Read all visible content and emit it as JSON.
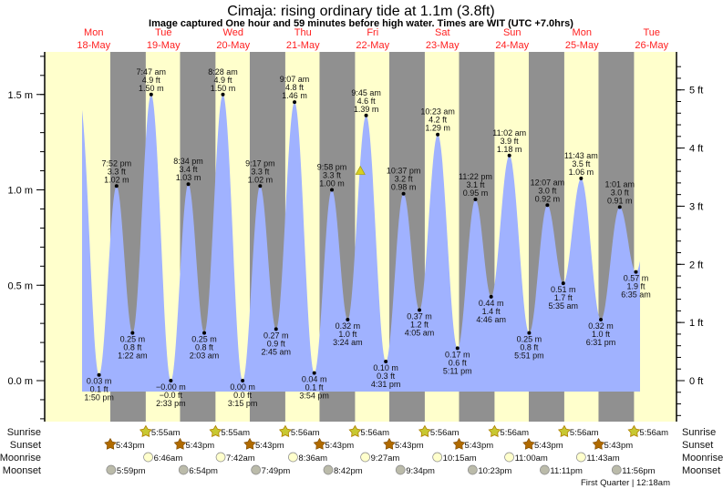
{
  "title": "Cimaja: rising  ordinary tide at 1.1m (3.8ft)",
  "subtitle": "Image captured One hour and 59 minutes before high water. Times are WIT (UTC +7.0hrs)",
  "colors": {
    "day": "#ffffcc",
    "night": "#909090",
    "water": "#a0b2ff",
    "day_label": "#ff2020",
    "sunrise": "#c8c832",
    "sunset": "#b06a00",
    "moonrise": "#ffffcc",
    "moonset": "#bbbbaa",
    "now_marker": "#d8d020"
  },
  "days": [
    {
      "dow": "Mon",
      "date": "18-May"
    },
    {
      "dow": "Tue",
      "date": "19-May"
    },
    {
      "dow": "Wed",
      "date": "20-May"
    },
    {
      "dow": "Thu",
      "date": "21-May"
    },
    {
      "dow": "Fri",
      "date": "22-May"
    },
    {
      "dow": "Sat",
      "date": "23-May"
    },
    {
      "dow": "Sun",
      "date": "24-May"
    },
    {
      "dow": "Mon",
      "date": "25-May"
    },
    {
      "dow": "Tue",
      "date": "26-May"
    }
  ],
  "chart_data": {
    "type": "area",
    "ylim_m": [
      -0.2,
      1.7
    ],
    "left_axis": {
      "unit": "m",
      "ticks": [
        "0.0 m",
        "0.5 m",
        "1.0 m",
        "1.5 m"
      ],
      "values": [
        0,
        0.5,
        1.0,
        1.5
      ]
    },
    "right_axis": {
      "unit": "ft",
      "ticks": [
        "0 ft",
        "1 ft",
        "2 ft",
        "3 ft",
        "4 ft",
        "5 ft"
      ],
      "values": [
        0,
        1,
        2,
        3,
        4,
        5
      ]
    },
    "current": {
      "level_m": 1.1,
      "level_ft": 3.8,
      "day": 4,
      "time": "7:46 am"
    },
    "extremes": [
      {
        "day": 0,
        "time": "1:50 pm",
        "type": "low",
        "m": "0.03 m",
        "ft": "0.1 ft",
        "value": 0.03
      },
      {
        "day": 0,
        "time": "7:52 pm",
        "type": "high",
        "m": "1.02 m",
        "ft": "3.3 ft",
        "value": 1.02
      },
      {
        "day": 1,
        "time": "1:22 am",
        "type": "low",
        "m": "0.25 m",
        "ft": "0.8 ft",
        "value": 0.25
      },
      {
        "day": 1,
        "time": "7:47 am",
        "type": "high",
        "m": "1.50 m",
        "ft": "4.9 ft",
        "value": 1.5
      },
      {
        "day": 1,
        "time": "2:33 pm",
        "type": "low",
        "m": "−0.00 m",
        "ft": "−0.0 ft",
        "value": 0.0
      },
      {
        "day": 1,
        "time": "8:34 pm",
        "type": "high",
        "m": "1.03 m",
        "ft": "3.4 ft",
        "value": 1.03
      },
      {
        "day": 2,
        "time": "2:03 am",
        "type": "low",
        "m": "0.25 m",
        "ft": "0.8 ft",
        "value": 0.25
      },
      {
        "day": 2,
        "time": "8:28 am",
        "type": "high",
        "m": "1.50 m",
        "ft": "4.9 ft",
        "value": 1.5
      },
      {
        "day": 2,
        "time": "3:15 pm",
        "type": "low",
        "m": "0.00 m",
        "ft": "0.0 ft",
        "value": 0.0
      },
      {
        "day": 2,
        "time": "9:17 pm",
        "type": "high",
        "m": "1.02 m",
        "ft": "3.3 ft",
        "value": 1.02
      },
      {
        "day": 3,
        "time": "2:45 am",
        "type": "low",
        "m": "0.27 m",
        "ft": "0.9 ft",
        "value": 0.27
      },
      {
        "day": 3,
        "time": "9:07 am",
        "type": "high",
        "m": "1.46 m",
        "ft": "4.8 ft",
        "value": 1.46
      },
      {
        "day": 3,
        "time": "3:54 pm",
        "type": "low",
        "m": "0.04 m",
        "ft": "0.1 ft",
        "value": 0.04
      },
      {
        "day": 3,
        "time": "9:58 pm",
        "type": "high",
        "m": "1.00 m",
        "ft": "3.3 ft",
        "value": 1.0
      },
      {
        "day": 4,
        "time": "3:24 am",
        "type": "low",
        "m": "0.32 m",
        "ft": "1.0 ft",
        "value": 0.32
      },
      {
        "day": 4,
        "time": "9:45 am",
        "type": "high",
        "m": "1.39 m",
        "ft": "4.6 ft",
        "value": 1.39
      },
      {
        "day": 4,
        "time": "4:31 pm",
        "type": "low",
        "m": "0.10 m",
        "ft": "0.3 ft",
        "value": 0.1
      },
      {
        "day": 4,
        "time": "10:37 pm",
        "type": "high",
        "m": "0.98 m",
        "ft": "3.2 ft",
        "value": 0.98
      },
      {
        "day": 5,
        "time": "4:05 am",
        "type": "low",
        "m": "0.37 m",
        "ft": "1.2 ft",
        "value": 0.37
      },
      {
        "day": 5,
        "time": "10:23 am",
        "type": "high",
        "m": "1.29 m",
        "ft": "4.2 ft",
        "value": 1.29
      },
      {
        "day": 5,
        "time": "5:11 pm",
        "type": "low",
        "m": "0.17 m",
        "ft": "0.6 ft",
        "value": 0.17
      },
      {
        "day": 5,
        "time": "11:22 pm",
        "type": "high",
        "m": "0.95 m",
        "ft": "3.1 ft",
        "value": 0.95
      },
      {
        "day": 6,
        "time": "4:46 am",
        "type": "low",
        "m": "0.44 m",
        "ft": "1.4 ft",
        "value": 0.44
      },
      {
        "day": 6,
        "time": "11:02 am",
        "type": "high",
        "m": "1.18 m",
        "ft": "3.9 ft",
        "value": 1.18
      },
      {
        "day": 6,
        "time": "5:51 pm",
        "type": "low",
        "m": "0.25 m",
        "ft": "0.8 ft",
        "value": 0.25
      },
      {
        "day": 7,
        "time": "12:07 am",
        "type": "high",
        "m": "0.92 m",
        "ft": "3.0 ft",
        "value": 0.92
      },
      {
        "day": 7,
        "time": "5:35 am",
        "type": "low",
        "m": "0.51 m",
        "ft": "1.7 ft",
        "value": 0.51
      },
      {
        "day": 7,
        "time": "11:43 am",
        "type": "high",
        "m": "1.06 m",
        "ft": "3.5 ft",
        "value": 1.06
      },
      {
        "day": 7,
        "time": "6:31 pm",
        "type": "low",
        "m": "0.32 m",
        "ft": "1.0 ft",
        "value": 0.32
      },
      {
        "day": 8,
        "time": "1:01 am",
        "type": "high",
        "m": "0.91 m",
        "ft": "3.0 ft",
        "value": 0.91
      },
      {
        "day": 8,
        "time": "6:35 am",
        "type": "low",
        "m": "0.57 m",
        "ft": "1.9 ft",
        "value": 0.57
      }
    ]
  },
  "rows": {
    "sunrise_label": "Sunrise",
    "sunset_label": "Sunset",
    "moonrise_label": "Moonrise",
    "moonset_label": "Moonset",
    "sunrise": [
      {
        "day": 1,
        "time": "5:55am"
      },
      {
        "day": 2,
        "time": "5:55am"
      },
      {
        "day": 3,
        "time": "5:56am"
      },
      {
        "day": 4,
        "time": "5:56am"
      },
      {
        "day": 5,
        "time": "5:56am"
      },
      {
        "day": 6,
        "time": "5:56am"
      },
      {
        "day": 7,
        "time": "5:56am"
      },
      {
        "day": 8,
        "time": "5:56am"
      }
    ],
    "sunset": [
      {
        "day": 0,
        "time": "5:43pm"
      },
      {
        "day": 1,
        "time": "5:43pm"
      },
      {
        "day": 2,
        "time": "5:43pm"
      },
      {
        "day": 3,
        "time": "5:43pm"
      },
      {
        "day": 4,
        "time": "5:43pm"
      },
      {
        "day": 5,
        "time": "5:43pm"
      },
      {
        "day": 6,
        "time": "5:43pm"
      },
      {
        "day": 7,
        "time": "5:43pm"
      }
    ],
    "moonrise": [
      {
        "day": 1,
        "time": "6:46am"
      },
      {
        "day": 2,
        "time": "7:42am"
      },
      {
        "day": 3,
        "time": "8:36am"
      },
      {
        "day": 4,
        "time": "9:27am"
      },
      {
        "day": 5,
        "time": "10:15am"
      },
      {
        "day": 6,
        "time": "11:00am"
      },
      {
        "day": 7,
        "time": "11:43am"
      }
    ],
    "moonset": [
      {
        "day": 0,
        "time": "5:59pm"
      },
      {
        "day": 1,
        "time": "6:54pm"
      },
      {
        "day": 2,
        "time": "7:49pm"
      },
      {
        "day": 3,
        "time": "8:42pm"
      },
      {
        "day": 4,
        "time": "9:34pm"
      },
      {
        "day": 5,
        "time": "10:23pm"
      },
      {
        "day": 6,
        "time": "11:11pm"
      },
      {
        "day": 7,
        "time": "11:56pm"
      }
    ],
    "moon_phase": "First Quarter | 12:18am"
  }
}
